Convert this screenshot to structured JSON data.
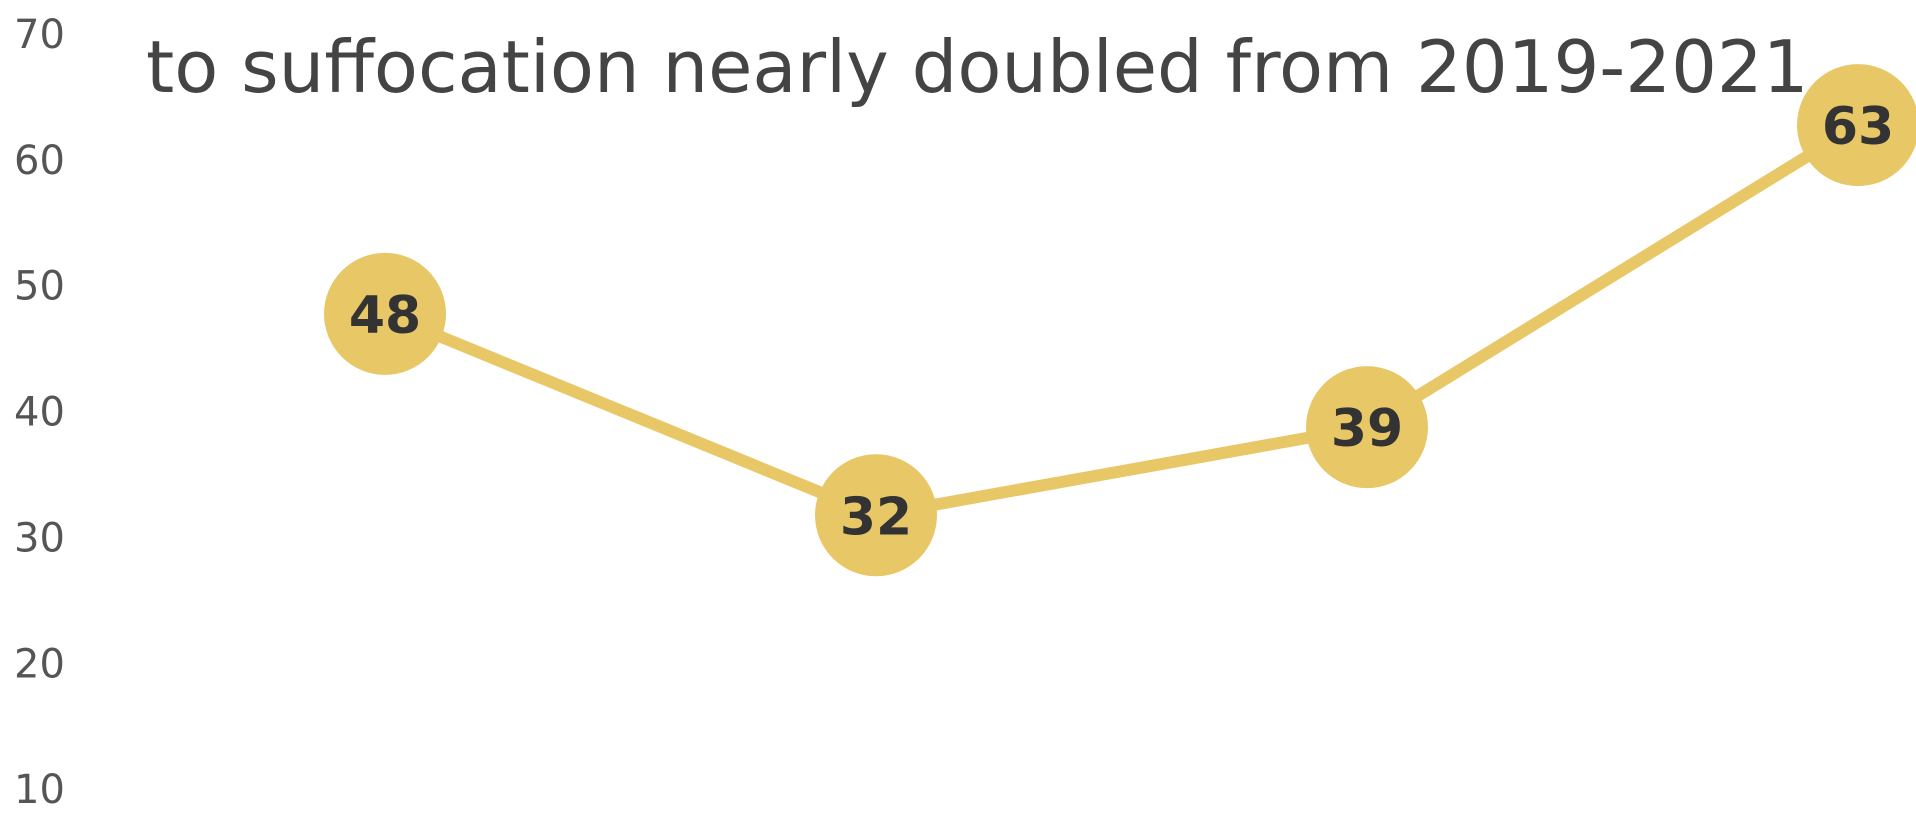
{
  "chart_data": {
    "type": "line",
    "title": "to suffocation nearly doubled from 2019-2021.",
    "categories": [
      null,
      null,
      null,
      null
    ],
    "series": [
      {
        "name": null,
        "color": "#e8c766",
        "values": [
          48,
          32,
          39,
          63
        ]
      }
    ],
    "ylim": [
      0,
      70
    ],
    "yticks": [
      10,
      20,
      30,
      40,
      50,
      60,
      70
    ],
    "grid": false
  }
}
